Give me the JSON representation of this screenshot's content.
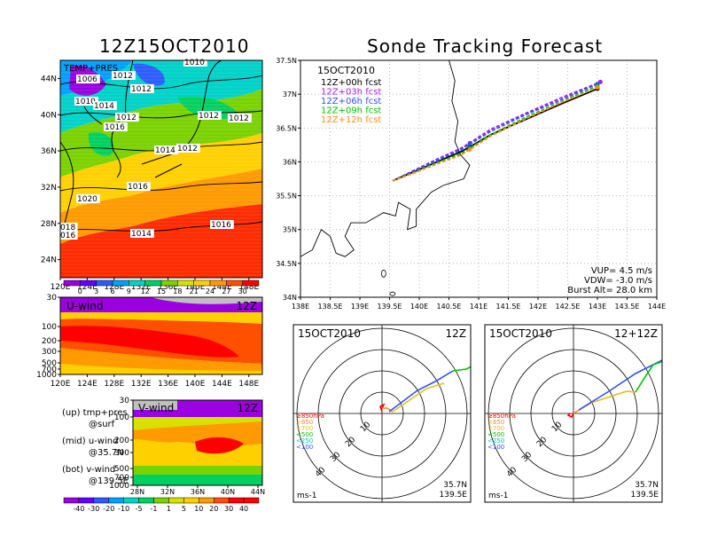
{
  "header": {
    "left_title": "12Z15OCT2010",
    "right_title": "Sonde Tracking Forecast"
  },
  "colors": {
    "track_00h": "#000000",
    "track_03h": "#a020f0",
    "track_06h": "#3050ff",
    "track_09h": "#00c000",
    "track_12h": "#ff8c1a"
  },
  "chart_data": [
    {
      "type": "heatmap",
      "name": "temperature-pressure-map",
      "label": "TEMP+PRES",
      "x_ticks": [
        "120E",
        "124E",
        "128E",
        "132E",
        "136E",
        "140E",
        "144E",
        "148E"
      ],
      "y_ticks": [
        "24N",
        "28N",
        "32N",
        "36N",
        "40N",
        "44N"
      ],
      "xlim": [
        120,
        150
      ],
      "ylim": [
        22,
        46
      ],
      "isobar_labels": [
        "1010",
        "1006",
        "1012",
        "1012",
        "1010",
        "1014",
        "1012",
        "1016",
        "1012",
        "1012",
        "1014",
        "1012",
        "1016",
        "1020",
        "018",
        "016",
        "1014",
        "1016"
      ],
      "colorbar": {
        "ticks": [
          "0",
          "3",
          "6",
          "9",
          "12",
          "15",
          "18",
          "21",
          "24",
          "27",
          "30"
        ],
        "colors": [
          "#9b00e0",
          "#6000ff",
          "#2c5cff",
          "#00a0ff",
          "#00d2c8",
          "#00d060",
          "#7ad200",
          "#d8e000",
          "#ffd000",
          "#ff9a00",
          "#ff5000",
          "#ff0000"
        ]
      }
    },
    {
      "type": "heatmap",
      "name": "u-wind-section",
      "label": "U-wind",
      "time_label": "12Z",
      "x_ticks": [
        "120E",
        "124E",
        "128E",
        "132E",
        "136E",
        "140E",
        "144E",
        "148E"
      ],
      "y_ticks": [
        "30",
        "100",
        "200",
        "300",
        "500",
        "700",
        "1000"
      ]
    },
    {
      "type": "heatmap",
      "name": "v-wind-section",
      "label": "V-wind",
      "time_label": "12Z",
      "x_ticks": [
        "28N",
        "32N",
        "36N",
        "40N",
        "44N"
      ],
      "y_ticks": [
        "30",
        "100",
        "200",
        "300",
        "500",
        "700",
        "1000"
      ],
      "colorbar": {
        "ticks": [
          "-40",
          "-30",
          "-20",
          "-10",
          "-5",
          "-1",
          "1",
          "5",
          "10",
          "20",
          "30",
          "40"
        ],
        "colors": [
          "#9b00e0",
          "#6000ff",
          "#2c5cff",
          "#00a0ff",
          "#00d2c8",
          "#00d060",
          "#7ad200",
          "#d8e000",
          "#ffd000",
          "#ff9a00",
          "#ff5000",
          "#ff0000",
          "#ff0000"
        ]
      }
    },
    {
      "type": "line",
      "name": "sonde-track",
      "date_label": "15OCT2010",
      "x_ticks": [
        "138E",
        "138.5E",
        "139E",
        "139.5E",
        "140E",
        "140.5E",
        "141E",
        "141.5E",
        "142E",
        "142.5E",
        "143E",
        "143.5E",
        "144E"
      ],
      "y_ticks": [
        "34N",
        "34.5N",
        "35N",
        "35.5N",
        "36N",
        "36.5N",
        "37N",
        "37.5N"
      ],
      "xlim": [
        138,
        144
      ],
      "ylim": [
        34,
        37.5
      ],
      "series": [
        {
          "name": "12Z+00h fcst",
          "color": "#000000",
          "x": [
            139.55,
            139.9,
            140.3,
            140.7,
            140.85,
            141.2,
            141.8,
            142.4,
            143.0
          ],
          "y": [
            35.72,
            35.85,
            36.0,
            36.15,
            36.22,
            36.4,
            36.63,
            36.86,
            37.08
          ]
        },
        {
          "name": "12Z+03h fcst",
          "color": "#a020f0",
          "x": [
            139.55,
            139.9,
            140.3,
            140.7,
            140.85,
            141.2,
            141.8,
            142.4,
            143.05
          ],
          "y": [
            35.72,
            35.87,
            36.04,
            36.2,
            36.28,
            36.48,
            36.72,
            36.95,
            37.18
          ]
        },
        {
          "name": "12Z+06h fcst",
          "color": "#3050ff",
          "x": [
            139.55,
            139.9,
            140.3,
            140.7,
            140.85,
            141.2,
            141.8,
            142.4,
            143.0
          ],
          "y": [
            35.72,
            35.86,
            36.02,
            36.18,
            36.26,
            36.45,
            36.7,
            36.92,
            37.15
          ]
        },
        {
          "name": "12Z+09h fcst",
          "color": "#00c000",
          "x": [
            139.55,
            139.9,
            140.3,
            140.7,
            140.85,
            141.2,
            141.8,
            142.4,
            143.0
          ],
          "y": [
            35.72,
            35.84,
            35.99,
            36.12,
            36.2,
            36.4,
            36.66,
            36.89,
            37.12
          ]
        },
        {
          "name": "12Z+12h fcst",
          "color": "#ff8c1a",
          "x": [
            139.55,
            139.9,
            140.3,
            140.7,
            140.85,
            141.2,
            141.8,
            142.4,
            143.0
          ],
          "y": [
            35.72,
            35.83,
            35.97,
            36.1,
            36.18,
            36.38,
            36.64,
            36.88,
            37.1
          ]
        }
      ],
      "stats": [
        "VUP=  4.5 m/s",
        "VDW= -3.0 m/s",
        "Burst Alt= 28.0 km"
      ]
    },
    {
      "type": "scatter",
      "name": "hodograph-12z",
      "date_label": "15OCT2010",
      "time_label": "12Z",
      "ring_labels": [
        "10",
        "20",
        "30",
        "40"
      ],
      "unit": "ms-1",
      "location": [
        "35.7N",
        "139.5E"
      ],
      "pressure_legend": [
        {
          "label": "≥850hPa",
          "color": "#ff0000"
        },
        {
          "label": "<850",
          "color": "#ff8c1a"
        },
        {
          "label": "<700",
          "color": "#e0c020"
        },
        {
          "label": "<500",
          "color": "#00c000"
        },
        {
          "label": "<250",
          "color": "#00c0c0"
        },
        {
          "label": "<100",
          "color": "#3050ff"
        }
      ]
    },
    {
      "type": "scatter",
      "name": "hodograph-12plus12z",
      "date_label": "15OCT2010",
      "time_label": "12+12Z",
      "ring_labels": [
        "10",
        "20",
        "30",
        "40"
      ],
      "unit": "ms-1",
      "location": [
        "35.7N",
        "139.5E"
      ],
      "pressure_legend": [
        {
          "label": "≥850hPa",
          "color": "#ff0000"
        },
        {
          "label": "<850",
          "color": "#ff8c1a"
        },
        {
          "label": "<700",
          "color": "#e0c020"
        },
        {
          "label": "<500",
          "color": "#00c000"
        },
        {
          "label": "<250",
          "color": "#00c0c0"
        },
        {
          "label": "<100",
          "color": "#3050ff"
        }
      ]
    }
  ],
  "panel_notes": {
    "line1a": "(up) tmp+pres",
    "line1b": "@surf",
    "line2a": "(mid) u-wind",
    "line2b": "@35.7N",
    "line3a": "(bot) v-wind",
    "line3b": "@139.5E"
  }
}
